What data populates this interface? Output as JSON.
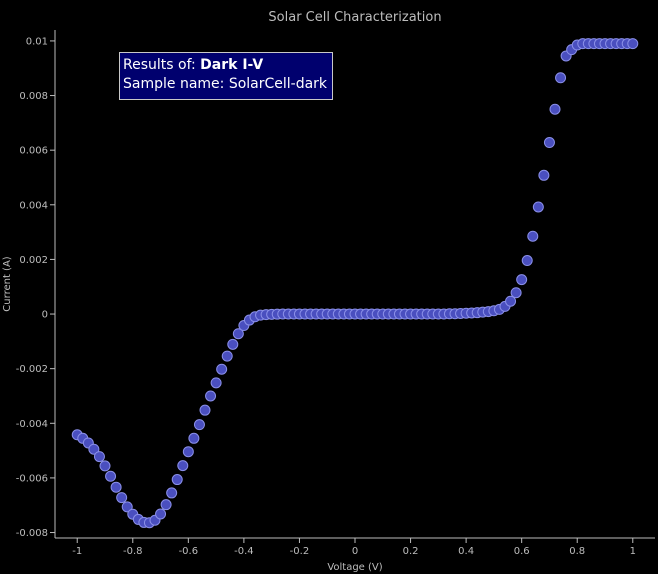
{
  "chart_data": {
    "type": "scatter",
    "title": "Solar Cell Characterization",
    "xlabel": "Voltage (V)",
    "ylabel": "Current (A)",
    "xlim": [
      -1.08,
      1.08
    ],
    "ylim": [
      -0.0082,
      0.0104
    ],
    "xticks": [
      "-1",
      "-0.8",
      "-0.6",
      "-0.4",
      "-0.2",
      "0",
      "0.2",
      "0.4",
      "0.6",
      "0.8",
      "1"
    ],
    "yticks": [
      "0.01",
      "0.008",
      "0.006",
      "0.004",
      "0.002",
      "0",
      "-0.002",
      "-0.004",
      "-0.006",
      "-0.008"
    ],
    "grid": false,
    "marker_color": "#4a4fbf",
    "marker_edge_color": "#8a8fe8",
    "series": [
      {
        "x": [
          -1.0,
          -0.98,
          -0.96,
          -0.94,
          -0.92,
          -0.9,
          -0.88,
          -0.86,
          -0.84,
          -0.82,
          -0.8,
          -0.78,
          -0.76,
          -0.74,
          -0.72,
          -0.7,
          -0.68,
          -0.66,
          -0.64,
          -0.62,
          -0.6,
          -0.58,
          -0.56,
          -0.54,
          -0.52,
          -0.5,
          -0.48,
          -0.46,
          -0.44,
          -0.42,
          -0.4,
          -0.38,
          -0.36,
          -0.34,
          -0.32,
          -0.3,
          -0.28,
          -0.26,
          -0.24,
          -0.22,
          -0.2,
          -0.18,
          -0.16,
          -0.14,
          -0.12,
          -0.1,
          -0.08,
          -0.06,
          -0.04,
          -0.02,
          0.0,
          0.02,
          0.04,
          0.06,
          0.08,
          0.1,
          0.12,
          0.14,
          0.16,
          0.18,
          0.2,
          0.22,
          0.24,
          0.26,
          0.28,
          0.3,
          0.32,
          0.34,
          0.36,
          0.38,
          0.4,
          0.42,
          0.44,
          0.46,
          0.48,
          0.5,
          0.52,
          0.54,
          0.56,
          0.58,
          0.6,
          0.62,
          0.64,
          0.66,
          0.68,
          0.7,
          0.72,
          0.74,
          0.76,
          0.78,
          0.8,
          0.82,
          0.84,
          0.86,
          0.88,
          0.9,
          0.92,
          0.94,
          0.96,
          0.98,
          1.0
        ],
        "y": [
          -0.00442,
          -0.00455,
          -0.00472,
          -0.00495,
          -0.00522,
          -0.00556,
          -0.00594,
          -0.00634,
          -0.00672,
          -0.00706,
          -0.00733,
          -0.00752,
          -0.00763,
          -0.00764,
          -0.00755,
          -0.00732,
          -0.00698,
          -0.00655,
          -0.00606,
          -0.00555,
          -0.00504,
          -0.00455,
          -0.00405,
          -0.00352,
          -0.003,
          -0.00252,
          -0.00202,
          -0.00154,
          -0.00111,
          -0.00072,
          -0.00042,
          -0.00022,
          -0.0001,
          -4e-05,
          -2e-05,
          -1e-05,
          -5e-06,
          0.0,
          0.0,
          0.0,
          0.0,
          0.0,
          0.0,
          0.0,
          0.0,
          0.0,
          0.0,
          0.0,
          0.0,
          0.0,
          0.0,
          0.0,
          0.0,
          0.0,
          0.0,
          0.0,
          0.0,
          0.0,
          0.0,
          0.0,
          0.0,
          0.0,
          0.0,
          0.0,
          0.0,
          0.0,
          0.0,
          1e-05,
          1e-05,
          2e-05,
          3e-05,
          4e-05,
          5e-05,
          7e-05,
          9e-05,
          0.00012,
          0.00017,
          0.00028,
          0.00047,
          0.00078,
          0.00126,
          0.00196,
          0.00285,
          0.00392,
          0.00508,
          0.00628,
          0.0075,
          0.00865,
          0.00945,
          0.00968,
          0.00985,
          0.0099,
          0.0099,
          0.0099,
          0.0099,
          0.0099,
          0.0099,
          0.0099,
          0.0099,
          0.0099,
          0.0099
        ]
      }
    ]
  },
  "info": {
    "results_prefix": "Results of: ",
    "results_value": "Dark I-V",
    "sample_line": "Sample name: SolarCell-dark"
  }
}
